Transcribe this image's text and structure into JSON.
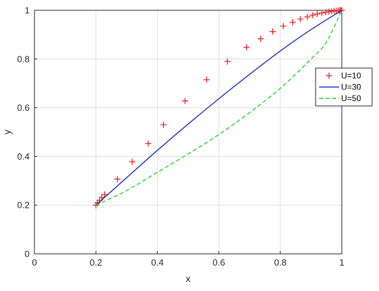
{
  "chart_data": {
    "type": "line",
    "xlabel": "x",
    "ylabel": "y",
    "xlim": [
      0,
      1
    ],
    "ylim": [
      0,
      1
    ],
    "grid": true,
    "legend_position": "right",
    "x_ticks": [
      "0",
      "0.2",
      "0.4",
      "0.6",
      "0.8",
      "1"
    ],
    "y_ticks": [
      "0",
      "0.2",
      "0.4",
      "0.6",
      "0.8",
      "1"
    ],
    "series": [
      {
        "name": "U=10",
        "style": "plus-markers",
        "color": "#e8262b",
        "x": [
          0.2,
          0.205,
          0.212,
          0.219,
          0.228,
          0.27,
          0.318,
          0.37,
          0.42,
          0.49,
          0.56,
          0.628,
          0.69,
          0.736,
          0.775,
          0.81,
          0.84,
          0.865,
          0.888,
          0.905,
          0.92,
          0.935,
          0.948,
          0.958,
          0.967,
          0.975,
          0.982,
          0.988,
          0.993,
          0.997,
          1.0
        ],
        "y": [
          0.2,
          0.21,
          0.22,
          0.232,
          0.244,
          0.307,
          0.378,
          0.453,
          0.53,
          0.628,
          0.715,
          0.79,
          0.848,
          0.883,
          0.913,
          0.935,
          0.951,
          0.964,
          0.973,
          0.98,
          0.985,
          0.989,
          0.992,
          0.994,
          0.996,
          0.997,
          0.998,
          0.999,
          0.9995,
          1.0,
          1.0
        ]
      },
      {
        "name": "U=30",
        "style": "solid",
        "color": "#1f2bbf",
        "x": [
          0.2,
          0.3,
          0.4,
          0.5,
          0.6,
          0.7,
          0.8,
          0.9,
          1.0
        ],
        "y": [
          0.2,
          0.313,
          0.425,
          0.533,
          0.637,
          0.737,
          0.833,
          0.921,
          1.0
        ]
      },
      {
        "name": "U=50",
        "style": "dashed",
        "color": "#22d32c",
        "x": [
          0.2,
          0.3,
          0.4,
          0.5,
          0.6,
          0.7,
          0.8,
          0.9,
          0.95,
          1.0
        ],
        "y": [
          0.2,
          0.26,
          0.335,
          0.41,
          0.49,
          0.58,
          0.68,
          0.8,
          0.87,
          1.0
        ]
      }
    ]
  }
}
